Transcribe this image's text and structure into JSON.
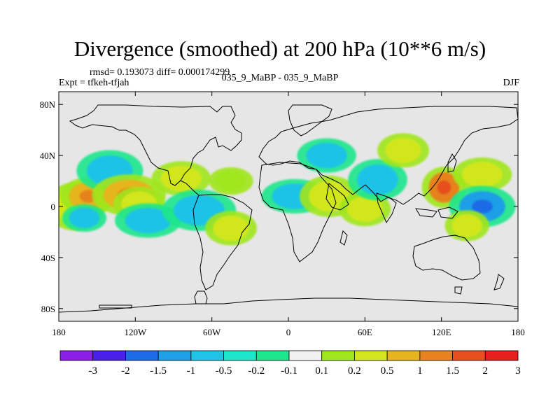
{
  "title": "Divergence (smoothed) at 200 hPa (10**6 m/s)",
  "subtitle": {
    "stats": "rmsd= 0.193073 diff= 0.000174299",
    "experiment": "Expt = tfkeh-tfjah",
    "comparison": "035_9_MaBP - 035_9_MaBP",
    "season": "DJF"
  },
  "map": {
    "projection": "cylindrical equidistant",
    "lon_range": [
      -180,
      180
    ],
    "lat_range": [
      -90,
      90
    ],
    "background_color": "#e6e6e6",
    "coastline_color": "#000000",
    "x_ticks": [
      {
        "value": -180,
        "label": "180"
      },
      {
        "value": -120,
        "label": "120W"
      },
      {
        "value": -60,
        "label": "60W"
      },
      {
        "value": 0,
        "label": "0"
      },
      {
        "value": 60,
        "label": "60E"
      },
      {
        "value": 120,
        "label": "120E"
      },
      {
        "value": 180,
        "label": "180"
      }
    ],
    "y_ticks": [
      {
        "value": 80,
        "label": "80N"
      },
      {
        "value": 40,
        "label": "40N"
      },
      {
        "value": 0,
        "label": "0"
      },
      {
        "value": -40,
        "label": "40S"
      },
      {
        "value": -80,
        "label": "80S"
      }
    ]
  },
  "colorbar": {
    "labels": [
      "-3",
      "-2",
      "-1.5",
      "-1",
      "-0.5",
      "-0.2",
      "-0.1",
      "0.1",
      "0.2",
      "0.5",
      "1",
      "1.5",
      "2",
      "3"
    ],
    "colors": [
      "#8c1fe6",
      "#4a1fe6",
      "#1f6be6",
      "#1f9fe6",
      "#1fc3e6",
      "#1fe6c8",
      "#1fe68c",
      "#f0f0f0",
      "#a0e61f",
      "#d2e61f",
      "#e6b41f",
      "#e6821f",
      "#e6501f",
      "#e61f1f"
    ]
  },
  "chart_data": {
    "type": "heatmap",
    "field": "200 hPa divergence difference (smoothed)",
    "units": "10**6 m/s",
    "season": "DJF",
    "levels": [
      -3,
      -2,
      -1.5,
      -1,
      -0.5,
      -0.2,
      -0.1,
      0.1,
      0.2,
      0.5,
      1,
      1.5,
      2,
      3
    ],
    "features": [
      {
        "lon": -167,
        "lat": 0,
        "level": 0.5
      },
      {
        "lon": -157,
        "lat": 8,
        "level": 1
      },
      {
        "lon": -160,
        "lat": -9,
        "level": -0.5
      },
      {
        "lon": -140,
        "lat": 28,
        "level": -0.5
      },
      {
        "lon": -125,
        "lat": 9,
        "level": 1
      },
      {
        "lon": -117,
        "lat": 2,
        "level": 0.5
      },
      {
        "lon": -110,
        "lat": -11,
        "level": -0.5
      },
      {
        "lon": -84,
        "lat": 22,
        "level": 0.5
      },
      {
        "lon": -70,
        "lat": -3,
        "level": -0.5
      },
      {
        "lon": -45,
        "lat": -17,
        "level": 0.5
      },
      {
        "lon": -45,
        "lat": 20,
        "level": 0.2
      },
      {
        "lon": 5,
        "lat": 8,
        "level": -0.5
      },
      {
        "lon": 30,
        "lat": 40,
        "level": -0.5
      },
      {
        "lon": 32,
        "lat": 8,
        "level": 0.5
      },
      {
        "lon": 60,
        "lat": -2,
        "level": 0.5
      },
      {
        "lon": 70,
        "lat": 21,
        "level": -0.5
      },
      {
        "lon": 90,
        "lat": 44,
        "level": 0.5
      },
      {
        "lon": 122,
        "lat": 15,
        "level": 1.5
      },
      {
        "lon": 152,
        "lat": 25,
        "level": 0.5
      },
      {
        "lon": 152,
        "lat": 0,
        "level": -1
      },
      {
        "lon": 140,
        "lat": -15,
        "level": 0.5
      }
    ]
  }
}
